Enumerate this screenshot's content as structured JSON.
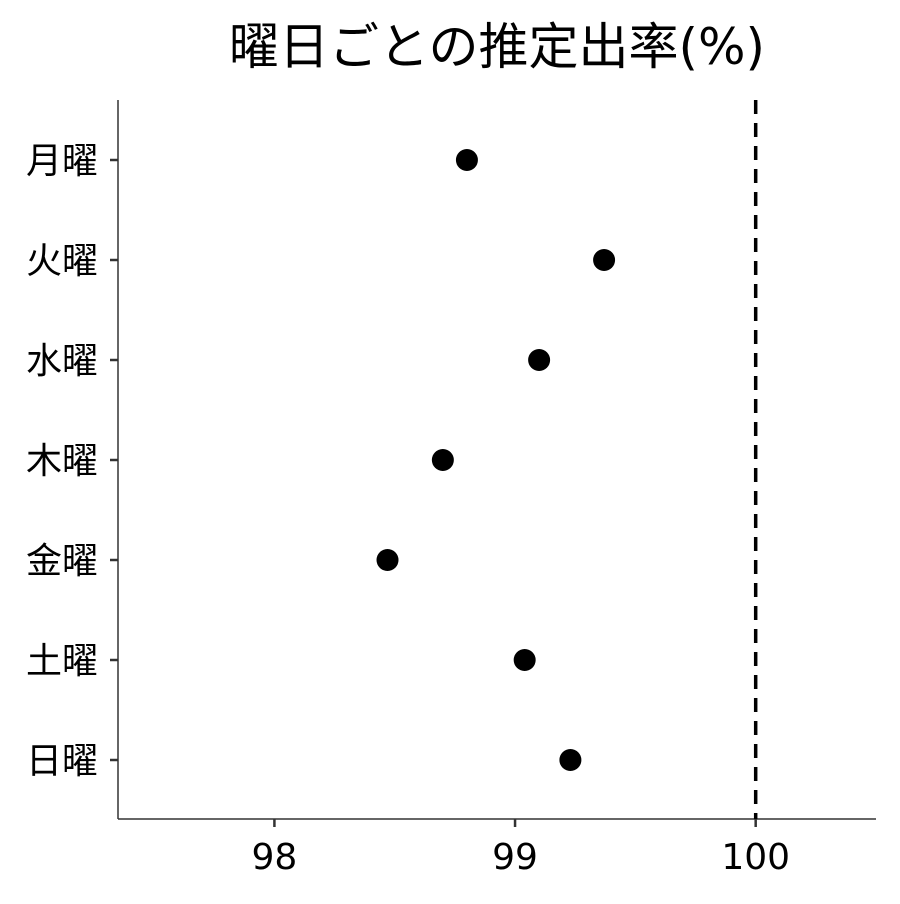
{
  "chart_data": {
    "type": "scatter",
    "title": "曜日ごとの推定出率(%)",
    "xlabel": "",
    "ylabel": "",
    "xlim": [
      97.35,
      100.5
    ],
    "x_ticks": [
      98,
      99,
      100
    ],
    "x_tick_labels": [
      "98",
      "99",
      "100"
    ],
    "categories": [
      "月曜",
      "火曜",
      "水曜",
      "木曜",
      "金曜",
      "土曜",
      "日曜"
    ],
    "values": [
      98.8,
      99.37,
      99.1,
      98.7,
      98.47,
      99.04,
      99.23
    ],
    "reference_line": {
      "x": 100,
      "style": "dashed"
    },
    "grid": false,
    "legend": "none",
    "colors": {
      "points": "#000000",
      "axis": "#333333",
      "reference_line": "#000000"
    }
  }
}
